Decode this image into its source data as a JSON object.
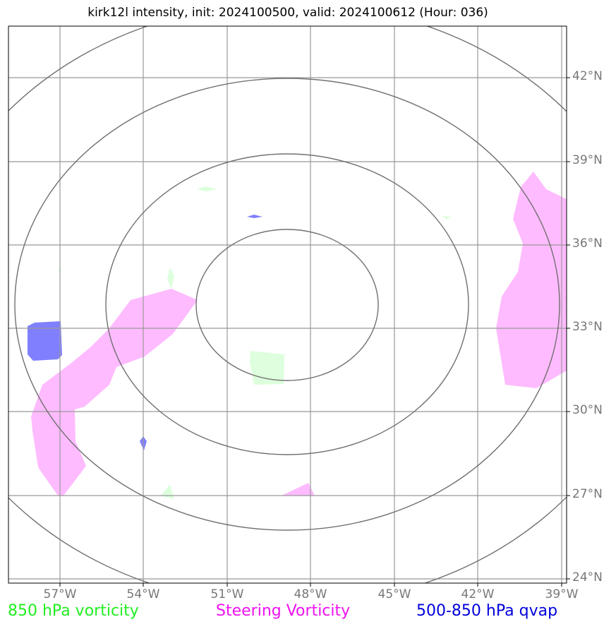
{
  "title": "kirk12l intensity, init: 2024100500, valid: 2024100612 (Hour: 036)",
  "lon_labels": [
    "57°W",
    "54°W",
    "51°W",
    "48°W",
    "45°W",
    "42°W",
    "39°W"
  ],
  "lat_labels": [
    "42°N",
    "39°N",
    "36°N",
    "33°N",
    "30°N",
    "27°N",
    "24°N"
  ],
  "legend": [
    {
      "label": "850 hPa vorticity",
      "color": "#22ee22"
    },
    {
      "label": "Steering Vorticity",
      "color": "#ee11ee"
    },
    {
      "label": "500-850 hPa qvap",
      "color": "#0000dd"
    }
  ],
  "colors": {
    "grid": "#999999",
    "range_ring": "#707070",
    "vorticity_850": "#ddffdd",
    "steering_vorticity": "#ffbbff",
    "qvap": "#8080ff",
    "axis_label": "#777777"
  }
}
